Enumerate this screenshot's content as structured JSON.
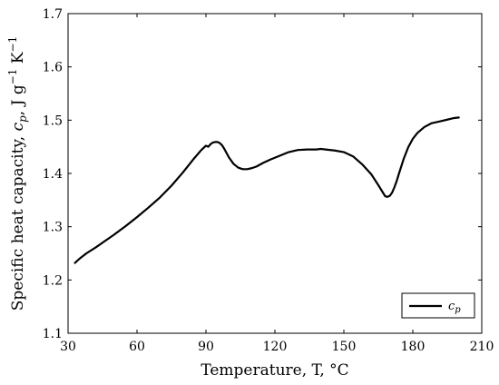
{
  "chart_data": {
    "type": "line",
    "xlabel": "Temperature, T, °C",
    "ylabel_main": "Specific heat capacity, ",
    "ylabel_cp": "c",
    "ylabel_cp_sub": "p",
    "ylabel_units": ", J g",
    "ylabel_sup1": "−1",
    "ylabel_k": " K",
    "ylabel_sup2": "−1",
    "xlim": [
      30,
      210
    ],
    "ylim": [
      1.1,
      1.7
    ],
    "xticks": [
      30,
      60,
      90,
      120,
      150,
      180,
      210
    ],
    "yticks": [
      1.1,
      1.2,
      1.3,
      1.4,
      1.5,
      1.6,
      1.7
    ],
    "grid": false,
    "legend_position": "bottom-right",
    "legend": {
      "main": "c",
      "sub": "p"
    },
    "series": [
      {
        "x": [
          33,
          35,
          38,
          42,
          46,
          50,
          55,
          60,
          65,
          70,
          75,
          80,
          85,
          88,
          90,
          91,
          92,
          93,
          94,
          95,
          96,
          97,
          98,
          100,
          102,
          104,
          106,
          108,
          110,
          112,
          115,
          118,
          122,
          126,
          130,
          134,
          138,
          140,
          142,
          146,
          150,
          154,
          158,
          162,
          165,
          167,
          168,
          169,
          170,
          171,
          172,
          173,
          174,
          176,
          178,
          180,
          182,
          185,
          188,
          190,
          192,
          195,
          198,
          200
        ],
        "y": [
          1.232,
          1.24,
          1.25,
          1.261,
          1.273,
          1.285,
          1.301,
          1.318,
          1.336,
          1.355,
          1.377,
          1.402,
          1.429,
          1.444,
          1.452,
          1.45,
          1.455,
          1.458,
          1.459,
          1.459,
          1.457,
          1.453,
          1.446,
          1.43,
          1.418,
          1.411,
          1.408,
          1.408,
          1.41,
          1.413,
          1.42,
          1.426,
          1.433,
          1.44,
          1.444,
          1.445,
          1.445,
          1.446,
          1.445,
          1.443,
          1.44,
          1.432,
          1.417,
          1.398,
          1.378,
          1.364,
          1.357,
          1.356,
          1.358,
          1.364,
          1.374,
          1.386,
          1.4,
          1.427,
          1.449,
          1.465,
          1.476,
          1.487,
          1.494,
          1.496,
          1.498,
          1.501,
          1.504,
          1.505
        ]
      }
    ]
  }
}
